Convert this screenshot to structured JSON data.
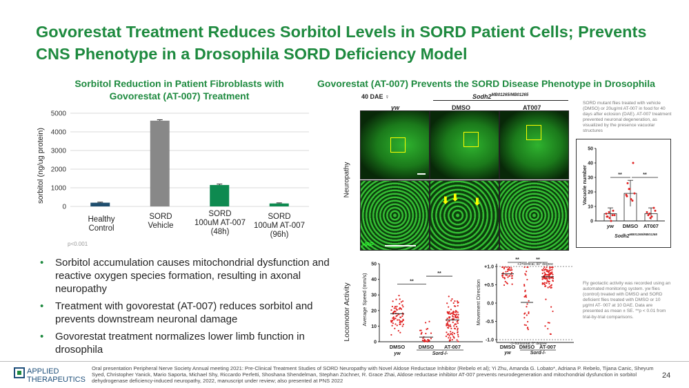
{
  "title": "Govorestat Treatment Reduces Sorbitol Levels in SORD Patient Cells; Prevents CNS Phenotype in a Drosophila SORD Deficiency Model",
  "left_heading": "Sorbitol Reduction in Patient Fibroblasts with Govorestat (AT-007) Treatment",
  "right_heading": "Govorestat (AT-007) Prevents the SORD Disease Phenotype in Drosophila",
  "bullets": [
    "Sorbitol accumulation causes mitochondrial dysfunction and reactive oxygen species formation, resulting in axonal neuropathy",
    "Treatment with govorestat (AT-007) reduces sorbitol and prevents downstream  neuronal damage",
    "Govorestat treatment normalizes lower limb function in drosophila"
  ],
  "pvalue": "p<0.001",
  "micro": {
    "dae": "40 DAE ♀",
    "genotype": "Sodh2",
    "genotype_sup": "MB01265/MB01265",
    "col_yw": "yw",
    "col_dmso": "DMSO",
    "col_at007": "AT007",
    "row_label": "Neuropathy",
    "hrp": "HRP"
  },
  "note_top": "SORD mutant flies treated with vehicle (DMSO) or 20ug/ml AT-007 in food for 40 days after eclosion (DAE). AT-007 treatment prevented neuronal degeneration, as visualized by the presence vacuolar structures",
  "note_bottom": "Fly geotactic activity was recorded using an automated monitoring system. yw flies (control) treated with DMSO and SORD deficient flies treated with DMSO or 10 μg/ml AT- 007 at 10 DAE. Data are presented as mean ± SE. **p < 0.01 from trial-by-trial comparisons.",
  "locomotor_label": "Locomotor Activity",
  "footer": "Oral presentation Peripheral Nerve Society Annual meeting 2021:  Pre-Clinical Treatment Studies of SORD Neuropathy with Novel Aldose Reductase Inhibitor (Rebelo et al); Yi Zhu, Amanda G. Lobato*, Adriana P. Rebelo, Tijana Canic, Sheyum Syed, Christopher Yanick, Mario Saporta, Michael Shy, Riccardo Perfetti, Shoshana Shendelman, Stephan Züchner, R. Grace Zhai, Aldose reductase inhibitor AT-007 prevents neurodegeneration and mitochondrial dysfunction in sorbitol dehydrogenase deficiency-induced neuropathy, 2022, manuscript under review; also presented at PNS 2022",
  "logo": {
    "line1": "APPLIED",
    "line2": "THERAPEUTICS"
  },
  "page_number": "24",
  "colors": {
    "accent": "#1e8a3f",
    "healthy": "#1f4e6e",
    "sord": "#888888",
    "treated": "#0e8a50",
    "dots": "#e02020"
  },
  "chart_data": [
    {
      "type": "bar",
      "categories": [
        "Healthy Control",
        "SORD Vehicle",
        "SORD 100uM AT-007 (48h)",
        "SORD 100uM AT-007 (96h)"
      ],
      "values": [
        200,
        4600,
        1150,
        160
      ],
      "errors": [
        30,
        50,
        50,
        30
      ],
      "ylabel": "sorbitol (ng/ug protein)",
      "ylim": [
        0,
        5000
      ],
      "yticks": [
        0,
        1000,
        2000,
        3000,
        4000,
        5000
      ],
      "grid": true
    },
    {
      "type": "bar",
      "categories": [
        "yw",
        "DMSO",
        "AT007"
      ],
      "values": [
        5,
        19,
        5
      ],
      "errors": [
        4,
        9,
        4
      ],
      "ylabel": "Vacuole number",
      "ylim": [
        0,
        50
      ],
      "yticks": [
        0,
        10,
        20,
        30,
        40,
        50
      ],
      "xgroup": "Sodh2",
      "xgroup_sup": "MB01265/MB01265",
      "significance": [
        "**",
        "**"
      ]
    },
    {
      "type": "scatter",
      "categories": [
        "DMSO",
        "DMSO",
        "AT-007"
      ],
      "groups": [
        "yw",
        "Sord-/-"
      ],
      "means": [
        18,
        3,
        14
      ],
      "ylabel": "Average Speed (mm/s)",
      "ylim": [
        0,
        50
      ],
      "yticks": [
        0,
        10,
        20,
        30,
        40,
        50
      ],
      "significance": [
        "**",
        "**"
      ]
    },
    {
      "type": "scatter",
      "categories": [
        "DMSO",
        "DMSO",
        "AT-007"
      ],
      "groups": [
        "yw",
        "Sord-/-"
      ],
      "means": [
        0.8,
        0.02,
        0.72
      ],
      "ylabel": "Movement Direction",
      "ylim": [
        -1.0,
        1.0
      ],
      "yticks": [
        "+1.0",
        "+0.5",
        "0.0",
        "-0.5",
        "-1.0"
      ],
      "annotations": [
        "+1=vertical, 90° degree",
        "-1=horizontal, 0° degree"
      ],
      "significance": [
        "**",
        "**"
      ]
    }
  ]
}
